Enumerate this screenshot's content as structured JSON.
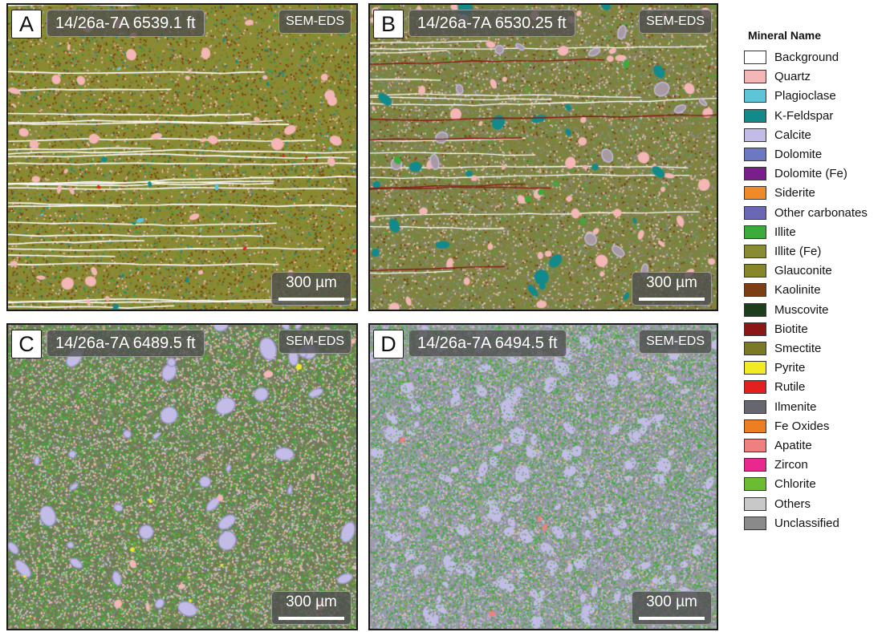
{
  "scale_label": "300 µm",
  "method_label": "SEM-EDS",
  "panels": [
    {
      "letter": "A",
      "sample": "14/26a-7A 6539.1 ft"
    },
    {
      "letter": "B",
      "sample": "14/26a-7A 6530.25 ft"
    },
    {
      "letter": "C",
      "sample": "14/26a-7A 6489.5 ft"
    },
    {
      "letter": "D",
      "sample": "14/26a-7A 6494.5 ft"
    }
  ],
  "legend": {
    "title": "Mineral Name",
    "items": [
      {
        "label": "Background",
        "color": "#ffffff"
      },
      {
        "label": "Quartz",
        "color": "#f4b6b6"
      },
      {
        "label": "Plagioclase",
        "color": "#5ec4d8"
      },
      {
        "label": "K-Feldspar",
        "color": "#128a8c"
      },
      {
        "label": "Calcite",
        "color": "#c2bce6"
      },
      {
        "label": "Dolomite",
        "color": "#6c78c2"
      },
      {
        "label": "Dolomite (Fe)",
        "color": "#7a1e8c"
      },
      {
        "label": "Siderite",
        "color": "#f08a28"
      },
      {
        "label": "Other carbonates",
        "color": "#6a68b4"
      },
      {
        "label": "Illite",
        "color": "#3bab3b"
      },
      {
        "label": "Illite (Fe)",
        "color": "#8a8a32"
      },
      {
        "label": "Glauconite",
        "color": "#86862a"
      },
      {
        "label": "Kaolinite",
        "color": "#7c3e12"
      },
      {
        "label": "Muscovite",
        "color": "#1c3e1c"
      },
      {
        "label": "Biotite",
        "color": "#8a1616"
      },
      {
        "label": "Smectite",
        "color": "#7a7a26"
      },
      {
        "label": "Pyrite",
        "color": "#f2ea22"
      },
      {
        "label": "Rutile",
        "color": "#e22020"
      },
      {
        "label": "Ilmenite",
        "color": "#666670"
      },
      {
        "label": "Fe Oxides",
        "color": "#ee7e22"
      },
      {
        "label": "Apatite",
        "color": "#f08080"
      },
      {
        "label": "Zircon",
        "color": "#e8288c"
      },
      {
        "label": "Chlorite",
        "color": "#6cbc32"
      },
      {
        "label": "Others",
        "color": "#c8c8c8"
      },
      {
        "label": "Unclassified",
        "color": "#8a8a8a"
      }
    ]
  }
}
